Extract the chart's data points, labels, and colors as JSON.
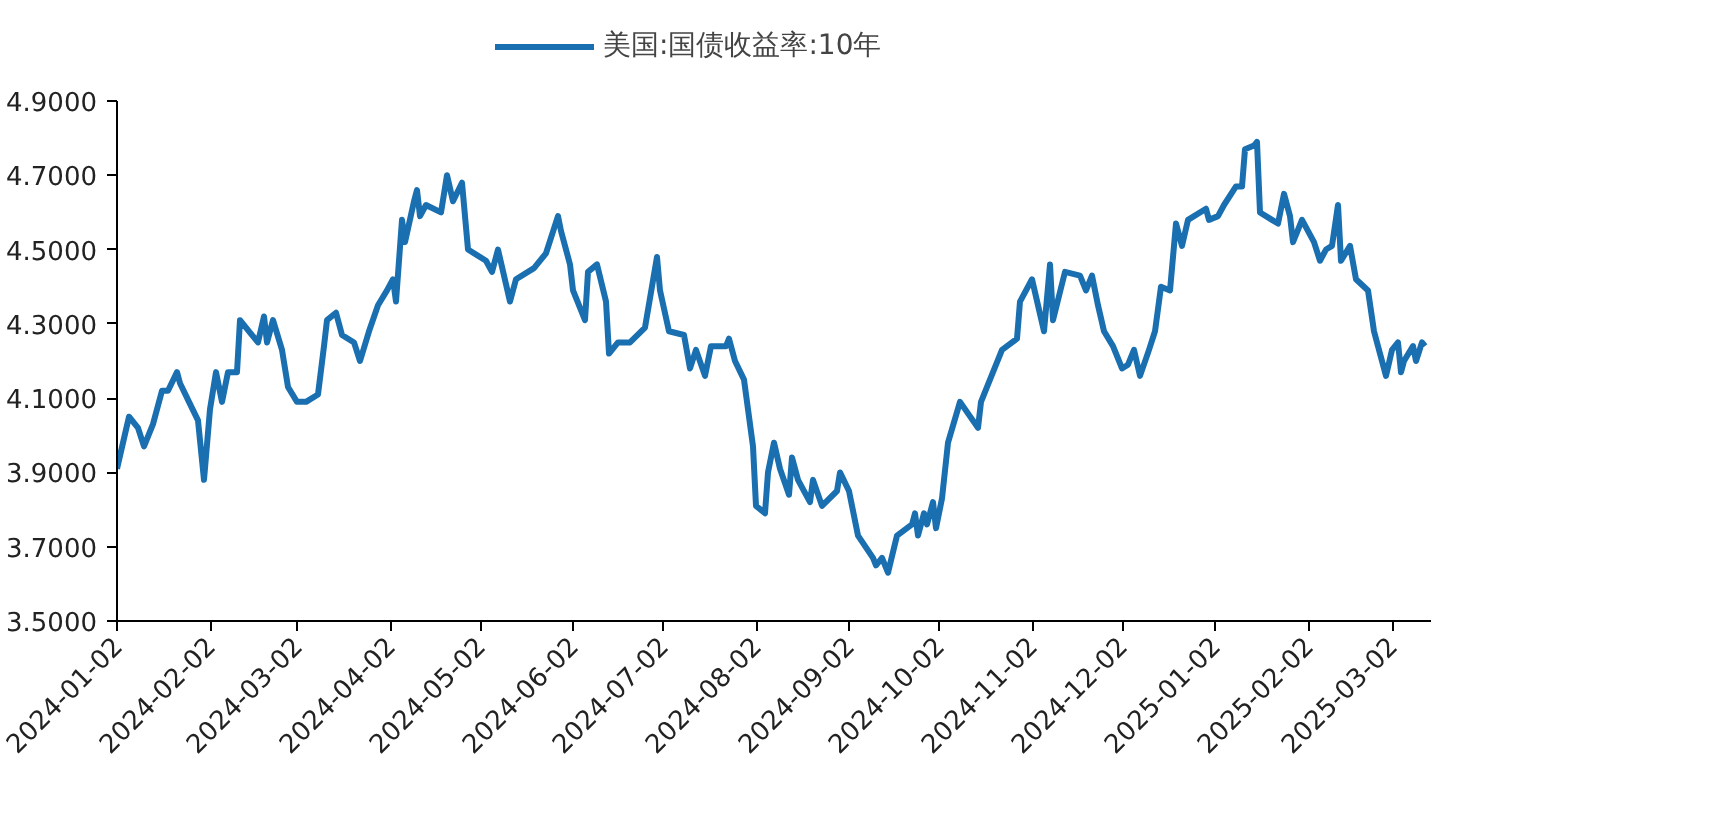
{
  "chart_data": {
    "type": "line",
    "legend": "top",
    "grid": false,
    "line_style": "solid",
    "marker": "none",
    "xlim": [
      "2024-01-02",
      "2025-03-15"
    ],
    "xticks": [
      "2024-01-02",
      "2024-02-02",
      "2024-03-02",
      "2024-04-02",
      "2024-05-02",
      "2024-06-02",
      "2024-07-02",
      "2024-08-02",
      "2024-09-02",
      "2024-10-02",
      "2024-11-02",
      "2024-12-02",
      "2025-01-02",
      "2025-02-02",
      "2025-03-02"
    ],
    "ylim": [
      3.5,
      4.9
    ],
    "yticks": [
      {
        "value": 3.5,
        "label": "3.5000"
      },
      {
        "value": 3.7,
        "label": "3.7000"
      },
      {
        "value": 3.9,
        "label": "3.9000"
      },
      {
        "value": 4.1,
        "label": "4.1000"
      },
      {
        "value": 4.3,
        "label": "4.3000"
      },
      {
        "value": 4.5,
        "label": "4.5000"
      },
      {
        "value": 4.7,
        "label": "4.7000"
      },
      {
        "value": 4.9,
        "label": "4.9000"
      }
    ],
    "x": [
      "2024-01-02",
      "2024-01-06",
      "2024-01-09",
      "2024-01-11",
      "2024-01-14",
      "2024-01-17",
      "2024-01-19",
      "2024-01-22",
      "2024-01-23",
      "2024-01-26",
      "2024-01-29",
      "2024-01-31",
      "2024-02-02",
      "2024-02-04",
      "2024-02-06",
      "2024-02-08",
      "2024-02-11",
      "2024-02-12",
      "2024-02-15",
      "2024-02-18",
      "2024-02-20",
      "2024-02-21",
      "2024-02-23",
      "2024-02-26",
      "2024-02-28",
      "2024-03-02",
      "2024-03-05",
      "2024-03-09",
      "2024-03-11",
      "2024-03-12",
      "2024-03-15",
      "2024-03-17",
      "2024-03-21",
      "2024-03-23",
      "2024-03-26",
      "2024-03-29",
      "2024-04-01",
      "2024-04-03",
      "2024-04-04",
      "2024-04-06",
      "2024-04-07",
      "2024-04-10",
      "2024-04-11",
      "2024-04-12",
      "2024-04-14",
      "2024-04-19",
      "2024-04-21",
      "2024-04-23",
      "2024-04-26",
      "2024-04-28",
      "2024-05-04",
      "2024-05-06",
      "2024-05-08",
      "2024-05-12",
      "2024-05-14",
      "2024-05-20",
      "2024-05-24",
      "2024-05-28",
      "2024-05-29",
      "2024-06-01",
      "2024-06-02",
      "2024-06-06",
      "2024-06-07",
      "2024-06-10",
      "2024-06-13",
      "2024-06-14",
      "2024-06-17",
      "2024-06-21",
      "2024-06-26",
      "2024-06-30",
      "2024-07-01",
      "2024-07-04",
      "2024-07-09",
      "2024-07-11",
      "2024-07-13",
      "2024-07-16",
      "2024-07-18",
      "2024-07-23",
      "2024-07-24",
      "2024-07-26",
      "2024-07-29",
      "2024-08-01",
      "2024-08-02",
      "2024-08-05",
      "2024-08-06",
      "2024-08-08",
      "2024-08-10",
      "2024-08-13",
      "2024-08-14",
      "2024-08-16",
      "2024-08-20",
      "2024-08-21",
      "2024-08-24",
      "2024-08-29",
      "2024-08-30",
      "2024-09-02",
      "2024-09-05",
      "2024-09-10",
      "2024-09-11",
      "2024-09-13",
      "2024-09-15",
      "2024-09-18",
      "2024-09-23",
      "2024-09-24",
      "2024-09-25",
      "2024-09-27",
      "2024-09-28",
      "2024-09-30",
      "2024-10-01",
      "2024-10-03",
      "2024-10-05",
      "2024-10-09",
      "2024-10-15",
      "2024-10-16",
      "2024-10-20",
      "2024-10-23",
      "2024-10-28",
      "2024-10-29",
      "2024-11-02",
      "2024-11-04",
      "2024-11-06",
      "2024-11-08",
      "2024-11-09",
      "2024-11-13",
      "2024-11-18",
      "2024-11-20",
      "2024-11-22",
      "2024-11-24",
      "2024-11-26",
      "2024-11-29",
      "2024-12-02",
      "2024-12-04",
      "2024-12-06",
      "2024-12-08",
      "2024-12-11",
      "2024-12-13",
      "2024-12-15",
      "2024-12-18",
      "2024-12-20",
      "2024-12-22",
      "2024-12-24",
      "2024-12-30",
      "2024-12-31",
      "2025-01-03",
      "2025-01-05",
      "2025-01-09",
      "2025-01-11",
      "2025-01-12",
      "2025-01-15",
      "2025-01-16",
      "2025-01-17",
      "2025-01-23",
      "2025-01-25",
      "2025-01-27",
      "2025-01-28",
      "2025-01-31",
      "2025-02-04",
      "2025-02-06",
      "2025-02-08",
      "2025-02-10",
      "2025-02-12",
      "2025-02-13",
      "2025-02-16",
      "2025-02-18",
      "2025-02-22",
      "2025-02-24",
      "2025-02-25",
      "2025-02-28",
      "2025-03-02",
      "2025-03-04",
      "2025-03-05",
      "2025-03-06",
      "2025-03-09",
      "2025-03-10",
      "2025-03-12",
      "2025-03-13"
    ],
    "series": [
      {
        "name": "美国:国债收益率:10年",
        "color": "#1a6fb0",
        "values": [
          3.91,
          4.05,
          4.02,
          3.97,
          4.03,
          4.12,
          4.12,
          4.17,
          4.14,
          4.09,
          4.04,
          3.88,
          4.07,
          4.17,
          4.09,
          4.17,
          4.17,
          4.31,
          4.28,
          4.25,
          4.32,
          4.25,
          4.31,
          4.23,
          4.13,
          4.09,
          4.09,
          4.11,
          4.24,
          4.31,
          4.33,
          4.27,
          4.25,
          4.2,
          4.28,
          4.35,
          4.39,
          4.42,
          4.36,
          4.58,
          4.52,
          4.63,
          4.66,
          4.59,
          4.62,
          4.6,
          4.7,
          4.63,
          4.68,
          4.5,
          4.47,
          4.44,
          4.5,
          4.36,
          4.42,
          4.45,
          4.49,
          4.59,
          4.55,
          4.46,
          4.39,
          4.31,
          4.44,
          4.46,
          4.36,
          4.22,
          4.25,
          4.25,
          4.29,
          4.48,
          4.39,
          4.28,
          4.27,
          4.18,
          4.23,
          4.16,
          4.24,
          4.24,
          4.26,
          4.2,
          4.15,
          3.97,
          3.81,
          3.79,
          3.9,
          3.98,
          3.91,
          3.84,
          3.94,
          3.88,
          3.82,
          3.88,
          3.81,
          3.85,
          3.9,
          3.85,
          3.73,
          3.67,
          3.65,
          3.67,
          3.63,
          3.73,
          3.76,
          3.79,
          3.73,
          3.79,
          3.76,
          3.82,
          3.75,
          3.83,
          3.98,
          4.09,
          4.02,
          4.09,
          4.17,
          4.23,
          4.26,
          4.36,
          4.42,
          4.35,
          4.28,
          4.46,
          4.31,
          4.44,
          4.43,
          4.39,
          4.43,
          4.35,
          4.28,
          4.24,
          4.18,
          4.19,
          4.23,
          4.16,
          4.23,
          4.28,
          4.4,
          4.39,
          4.57,
          4.51,
          4.58,
          4.61,
          4.58,
          4.59,
          4.62,
          4.67,
          4.67,
          4.77,
          4.78,
          4.79,
          4.6,
          4.57,
          4.65,
          4.59,
          4.52,
          4.58,
          4.52,
          4.47,
          4.5,
          4.51,
          4.62,
          4.47,
          4.51,
          4.42,
          4.39,
          4.28,
          4.25,
          4.16,
          4.23,
          4.25,
          4.17,
          4.2,
          4.24,
          4.2,
          4.25,
          4.24
        ]
      }
    ]
  }
}
